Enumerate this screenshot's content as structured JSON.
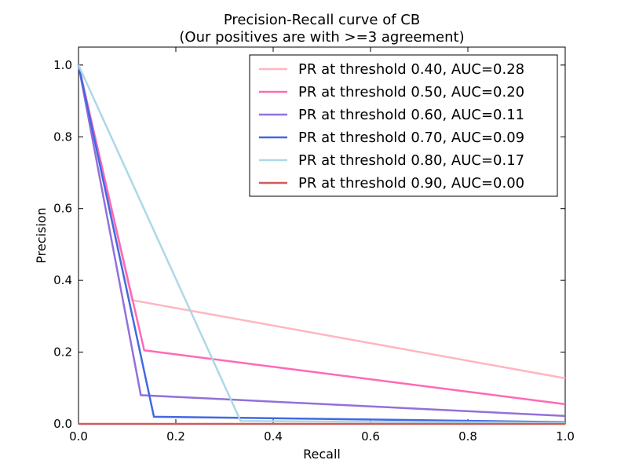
{
  "chart_data": {
    "type": "line",
    "title": "Precision-Recall curve of CB",
    "subtitle": "(Our positives are with >=3 agreement)",
    "xlabel": "Recall",
    "ylabel": "Precision",
    "xlim": [
      0.0,
      1.0
    ],
    "ylim": [
      0.0,
      1.05
    ],
    "x_ticks": [
      "0.0",
      "0.2",
      "0.4",
      "0.6",
      "0.8",
      "1.0"
    ],
    "y_ticks": [
      "0.0",
      "0.2",
      "0.4",
      "0.6",
      "0.8",
      "1.0"
    ],
    "grid": false,
    "legend_position": "top-right",
    "series": [
      {
        "name": "PR at threshold 0.40, AUC=0.28",
        "color": "#ffb6c1",
        "x": [
          0.0,
          0.11,
          1.0
        ],
        "y": [
          1.0,
          0.345,
          0.127
        ]
      },
      {
        "name": "PR at threshold 0.50, AUC=0.20",
        "color": "#ff69b4",
        "x": [
          0.0,
          0.135,
          1.0
        ],
        "y": [
          1.0,
          0.205,
          0.055
        ]
      },
      {
        "name": "PR at threshold 0.60, AUC=0.11",
        "color": "#9370db",
        "x": [
          0.0,
          0.128,
          1.0
        ],
        "y": [
          1.0,
          0.08,
          0.022
        ]
      },
      {
        "name": "PR at threshold 0.70, AUC=0.09",
        "color": "#4169e1",
        "x": [
          0.0,
          0.155,
          0.333,
          1.0
        ],
        "y": [
          1.0,
          0.02,
          0.017,
          0.005
        ]
      },
      {
        "name": "PR at threshold 0.80, AUC=0.17",
        "color": "#add8e6",
        "x": [
          0.0,
          0.333,
          1.0
        ],
        "y": [
          1.0,
          0.008,
          0.003
        ]
      },
      {
        "name": "PR at threshold 0.90, AUC=0.00",
        "color": "#cd5c5c",
        "x": [
          0.0,
          1.0
        ],
        "y": [
          0.0,
          0.0
        ]
      }
    ]
  }
}
